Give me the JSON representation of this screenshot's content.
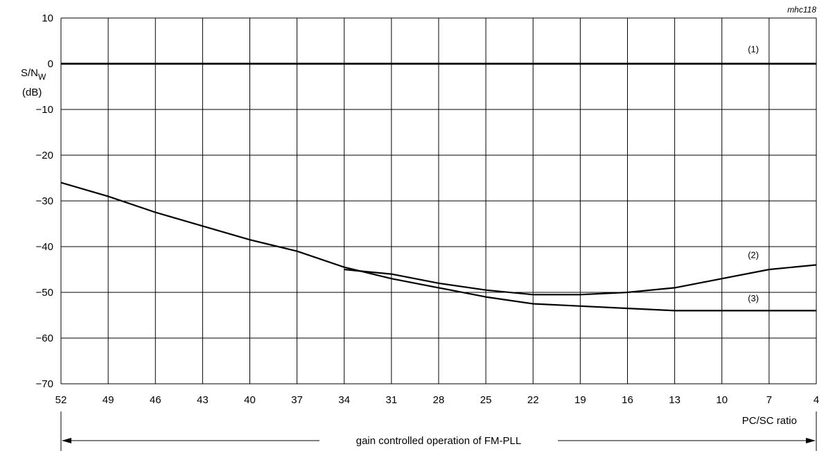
{
  "figure_id": "mhc118",
  "chart_data": {
    "type": "line",
    "xlabel": "PC/SC ratio",
    "ylabel_main": "S/N",
    "ylabel_sub": "W",
    "ylabel_unit": "(dB)",
    "xlim": [
      52,
      4
    ],
    "ylim": [
      -70,
      10
    ],
    "xticks": [
      52,
      49,
      46,
      43,
      40,
      37,
      34,
      31,
      28,
      25,
      22,
      19,
      16,
      13,
      10,
      7,
      4
    ],
    "yticks": [
      10,
      0,
      -10,
      -20,
      -30,
      -40,
      -50,
      -60,
      -70
    ],
    "grid": true,
    "series": [
      {
        "name": "(1)",
        "x": [
          52,
          4
        ],
        "y": [
          0,
          0
        ]
      },
      {
        "name": "(2)",
        "x": [
          34,
          31,
          28,
          25,
          22,
          19,
          16,
          13,
          10,
          7,
          4
        ],
        "y": [
          -45,
          -46,
          -48,
          -49.5,
          -50.5,
          -50.5,
          -50,
          -49,
          -47,
          -45,
          -44
        ]
      },
      {
        "name": "(3)",
        "x": [
          52,
          49,
          46,
          43,
          40,
          37,
          34,
          31,
          28,
          25,
          22,
          19,
          16,
          13,
          10,
          7,
          4
        ],
        "y": [
          -26,
          -29,
          -32.5,
          -35.5,
          -38.5,
          -41,
          -44.5,
          -47,
          -49,
          -51,
          -52.5,
          -53,
          -53.5,
          -54,
          -54,
          -54,
          -54
        ]
      }
    ],
    "range_annotation": {
      "label": "gain controlled operation of FM-PLL",
      "from_x": 52,
      "to_x": 4
    }
  }
}
